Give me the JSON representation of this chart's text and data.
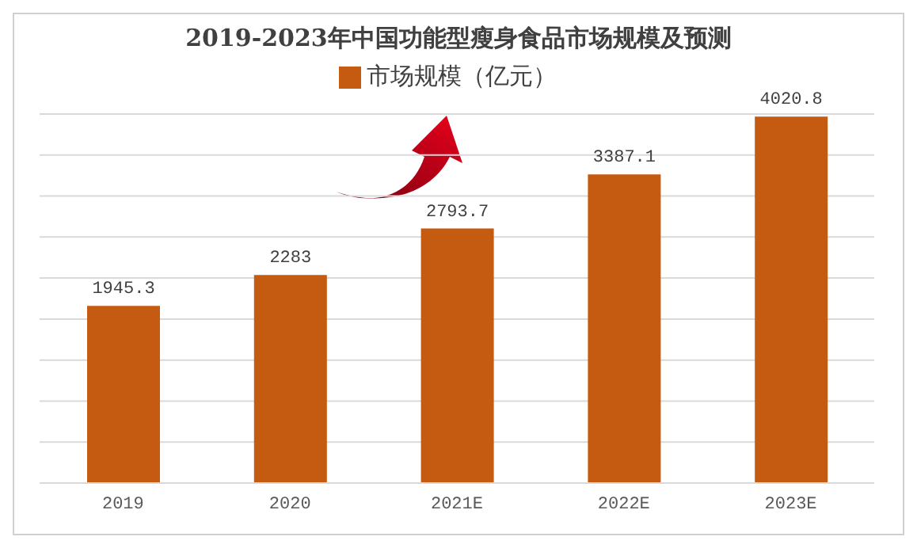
{
  "chart_data": {
    "type": "bar",
    "title": "2019-2023年中国功能型瘦身食品市场规模及预测",
    "categories": [
      "2019",
      "2020",
      "2021E",
      "2022E",
      "2023E"
    ],
    "series": [
      {
        "name": "市场规模（亿元）",
        "color": "#c55a11",
        "values": [
          1945.3,
          2283,
          2793.7,
          3387.1,
          4020.8
        ]
      }
    ],
    "grid": "y",
    "legend": "top",
    "tick_labels": "x",
    "data_labels": true
  }
}
